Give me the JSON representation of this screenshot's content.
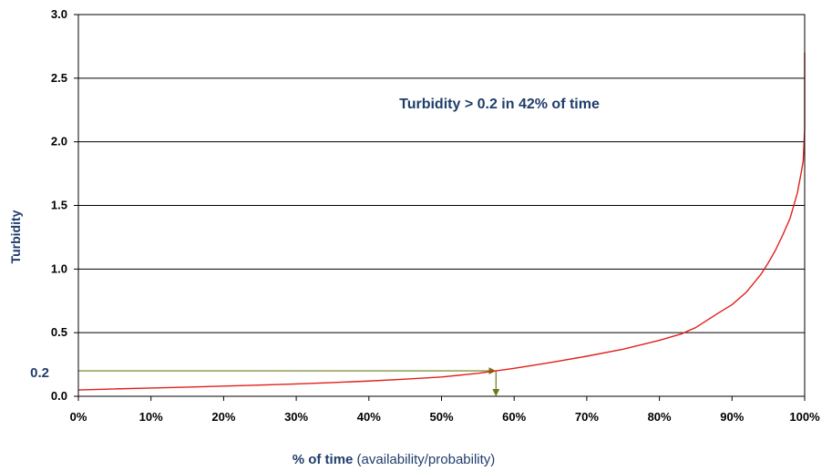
{
  "chart_data": {
    "type": "line",
    "ylabel": "Turbidity",
    "xlabel_bold": "% of time",
    "xlabel_rest": " (availability/probability)",
    "xlim": [
      0,
      100
    ],
    "ylim": [
      0,
      3
    ],
    "x_ticks": [
      0,
      10,
      20,
      30,
      40,
      50,
      60,
      70,
      80,
      90,
      100
    ],
    "x_tick_labels": [
      "0%",
      "10%",
      "20%",
      "30%",
      "40%",
      "50%",
      "60%",
      "70%",
      "80%",
      "90%",
      "100%"
    ],
    "y_ticks": [
      0,
      0.5,
      1,
      1.5,
      2,
      2.5,
      3
    ],
    "y_tick_labels": [
      "0.0",
      "0.5",
      "1.0",
      "1.5",
      "2.0",
      "2.5",
      "3.0"
    ],
    "grid": "horizontal",
    "annotation": "Turbidity > 0.2 in 42% of time",
    "threshold": {
      "label": "0.2",
      "y": 0.2,
      "x": 57.5
    },
    "series": [
      {
        "color": "#e0201c",
        "x": [
          0,
          5,
          10,
          15,
          20,
          25,
          30,
          35,
          40,
          45,
          50,
          55,
          57.5,
          60,
          65,
          70,
          75,
          80,
          83,
          85,
          88,
          90,
          92,
          94,
          95,
          96,
          97,
          98,
          99,
          99.5,
          99.8,
          100,
          100
        ],
        "y": [
          0.05,
          0.058,
          0.065,
          0.072,
          0.08,
          0.088,
          0.097,
          0.108,
          0.12,
          0.135,
          0.152,
          0.18,
          0.2,
          0.22,
          0.265,
          0.315,
          0.37,
          0.44,
          0.49,
          0.54,
          0.65,
          0.72,
          0.82,
          0.96,
          1.05,
          1.15,
          1.27,
          1.4,
          1.6,
          1.75,
          1.85,
          2.1,
          2.7
        ]
      }
    ],
    "colors": {
      "curve": "#e0201c",
      "threshold": "#6b7a1a",
      "text": "#1f3d6b",
      "grid": "#000000"
    }
  }
}
